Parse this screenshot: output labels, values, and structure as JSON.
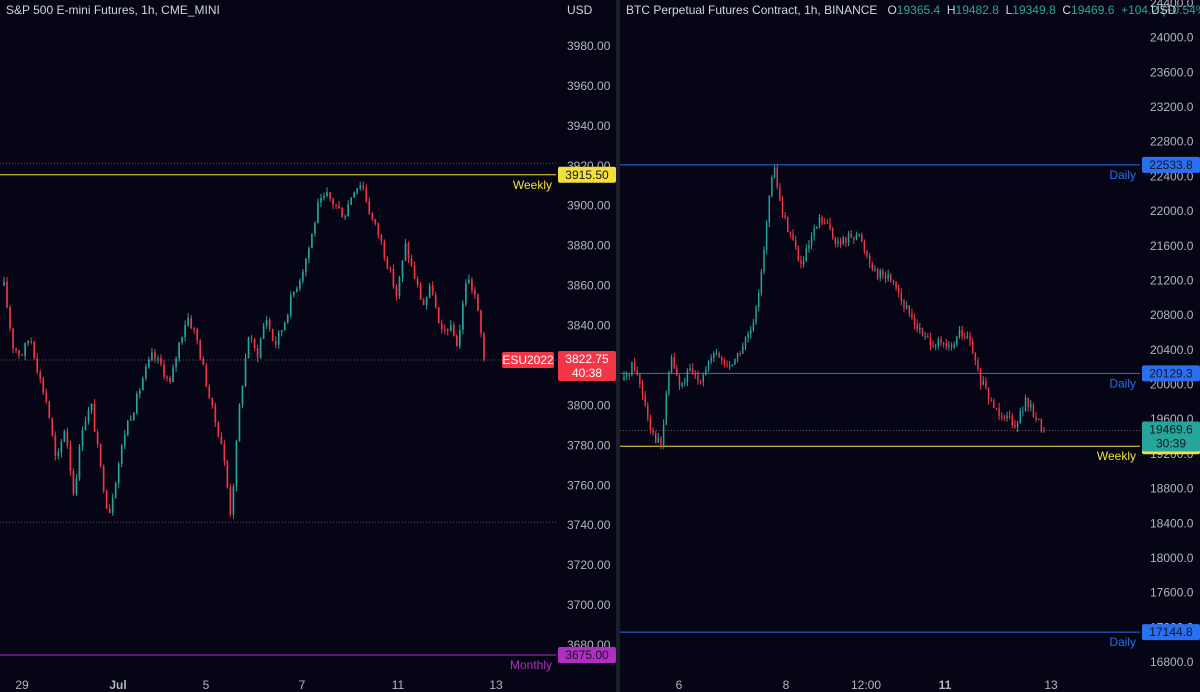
{
  "left": {
    "legend": {
      "symbol": "S&P 500 E-mini Futures, 1h, CME_MINI"
    },
    "axis_unit": "USD",
    "price_tag": {
      "label": "ESU2022",
      "price": "3822.75",
      "countdown": "40:38",
      "color": "#f23645"
    },
    "levels": [
      {
        "label": "Weekly",
        "value": 3915.5,
        "value_text": "3915.50",
        "color": "#f4e03a"
      },
      {
        "label": "Monthly",
        "value": 3675.0,
        "value_text": "3675.00",
        "color": "#b12ec4"
      }
    ],
    "dotted_lines": [
      3921.25,
      3822.75,
      3741.5
    ],
    "x_labels": [
      {
        "text": "29",
        "bold": false
      },
      {
        "text": "Jul",
        "bold": true
      },
      {
        "text": "5",
        "bold": false
      },
      {
        "text": "7",
        "bold": false
      },
      {
        "text": "11",
        "bold": false
      },
      {
        "text": "13",
        "bold": false
      }
    ]
  },
  "right": {
    "legend": {
      "symbol": "BTC Perpetual Futures Contract, 1h, BINANCE",
      "open_label": "O",
      "open": "19365.4",
      "high_label": "H",
      "high": "19482.8",
      "low_label": "L",
      "low": "19349.8",
      "close_label": "C",
      "close": "19469.6",
      "change": "+104.2 (+0.54%)"
    },
    "axis_unit": "USD",
    "price_tag": {
      "price": "19469.6",
      "countdown": "30:39",
      "color": "#26a69a"
    },
    "levels": [
      {
        "label": "Daily",
        "value": 22533.8,
        "value_text": "22533.8",
        "color": "#2a6ff0"
      },
      {
        "label": "Daily",
        "value": 20129.3,
        "value_text": "20129.3",
        "color": "#2a6ff0"
      },
      {
        "label": "Weekly",
        "value": 19288.3,
        "value_text": "19288.3",
        "color": "#f4e03a"
      },
      {
        "label": "Daily",
        "value": 17144.8,
        "value_text": "17144.8",
        "color": "#2a6ff0"
      }
    ],
    "dotted_lines": [
      19469.6
    ],
    "x_labels": [
      {
        "text": "6",
        "bold": false
      },
      {
        "text": "8",
        "bold": false
      },
      {
        "text": "12:00",
        "bold": false
      },
      {
        "text": "11",
        "bold": true
      },
      {
        "text": "13",
        "bold": false
      }
    ]
  },
  "chart_data": [
    {
      "type": "candlestick",
      "title": "S&P 500 E-mini Futures, 1h, CME_MINI",
      "ylabel": "USD",
      "ylim": [
        3670,
        3995
      ],
      "yticks": [
        3680,
        3700,
        3720,
        3740,
        3760,
        3780,
        3800,
        3820,
        3840,
        3860,
        3880,
        3900,
        3920,
        3940,
        3960,
        3980
      ],
      "ytick_labels": [
        "3680.00",
        "3700.00",
        "3720.00",
        "3740.00",
        "3760.00",
        "3780.00",
        "3800.00",
        "3820.00",
        "3840.00",
        "3860.00",
        "3880.00",
        "3900.00",
        "3920.00",
        "3940.00",
        "3960.00",
        "3980.00"
      ],
      "x_categories": [
        "29",
        "Jul",
        "5",
        "7",
        "11",
        "13"
      ],
      "close_path": [
        3860,
        3830,
        3825,
        3835,
        3815,
        3800,
        3770,
        3790,
        3755,
        3790,
        3800,
        3770,
        3745,
        3768,
        3790,
        3800,
        3815,
        3825,
        3820,
        3810,
        3830,
        3845,
        3835,
        3815,
        3795,
        3780,
        3745,
        3800,
        3835,
        3825,
        3845,
        3830,
        3840,
        3855,
        3865,
        3880,
        3900,
        3905,
        3900,
        3895,
        3908,
        3912,
        3895,
        3885,
        3870,
        3855,
        3880,
        3865,
        3850,
        3860,
        3835,
        3840,
        3830,
        3865,
        3855,
        3825
      ],
      "last_close": 3822.75,
      "series": [
        {
          "name": "ESU2022",
          "close": 3822.75
        }
      ]
    },
    {
      "type": "candlestick",
      "title": "BTC Perpetual Futures Contract, 1h, BINANCE",
      "ylabel": "USD",
      "ylim": [
        16700,
        24550
      ],
      "yticks": [
        16800,
        17200,
        17600,
        18000,
        18400,
        18800,
        19200,
        19600,
        20000,
        20400,
        20800,
        21200,
        21600,
        22000,
        22400,
        22800,
        23200,
        23600,
        24000,
        24400
      ],
      "ytick_labels": [
        "16800.0",
        "17200.0",
        "17600.0",
        "18000.0",
        "18400.0",
        "18800.0",
        "19200.0",
        "19600.0",
        "20000.0",
        "20400.0",
        "20800.0",
        "21200.0",
        "21600.0",
        "22000.0",
        "22400.0",
        "22800.0",
        "23200.0",
        "23600.0",
        "24000.0",
        "24400.0"
      ],
      "x_categories": [
        "6",
        "8",
        "12:00",
        "11",
        "13"
      ],
      "close_path": [
        20050,
        20250,
        19900,
        19450,
        19290,
        20350,
        19950,
        20150,
        20050,
        20250,
        20350,
        20200,
        20300,
        20500,
        20700,
        21600,
        22530,
        21950,
        21700,
        21350,
        21650,
        21900,
        21800,
        21600,
        21700,
        21750,
        21500,
        21300,
        21250,
        21200,
        20900,
        20750,
        20550,
        20500,
        20450,
        20400,
        20600,
        20500,
        20100,
        19850,
        19700,
        19650,
        19550,
        19800,
        19650,
        19469.6
      ],
      "ohlc": {
        "open": 19365.4,
        "high": 19482.8,
        "low": 19349.8,
        "close": 19469.6
      },
      "change": "+104.2 (+0.54%)",
      "last_close": 19469.6
    }
  ]
}
